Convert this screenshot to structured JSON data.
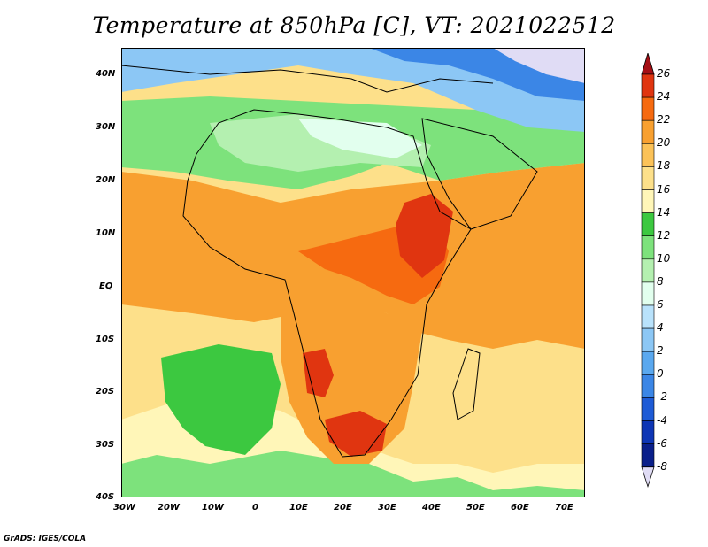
{
  "title": "Temperature at 850hPa [C], VT: 2021022512",
  "footer": "GrADS: IGES/COLA",
  "map": {
    "lat_labels": [
      "40N",
      "30N",
      "20N",
      "10N",
      "EQ",
      "10S",
      "20S",
      "30S",
      "40S"
    ],
    "lon_labels": [
      "30W",
      "20W",
      "10W",
      "0",
      "10E",
      "20E",
      "30E",
      "40E",
      "50E",
      "60E",
      "70E"
    ],
    "lat_range": [
      -40,
      44
    ],
    "lon_range": [
      -30,
      75
    ]
  },
  "colorbar": {
    "labels": [
      "26",
      "24",
      "22",
      "20",
      "18",
      "16",
      "14",
      "12",
      "10",
      "8",
      "6",
      "4",
      "2",
      "0",
      "-2",
      "-4",
      "-6",
      "-8"
    ],
    "colors": [
      "#a50f15",
      "#e03510",
      "#f66a10",
      "#f8a030",
      "#fbc258",
      "#fde08a",
      "#fff6b8",
      "#3cc840",
      "#7de27c",
      "#b4f0b0",
      "#e2ffee",
      "#b9e2fb",
      "#8cc7f5",
      "#5aa8ef",
      "#3b86e6",
      "#1e5bd6",
      "#0e36b5",
      "#0a1f8a",
      "#e0dcf5"
    ]
  }
}
